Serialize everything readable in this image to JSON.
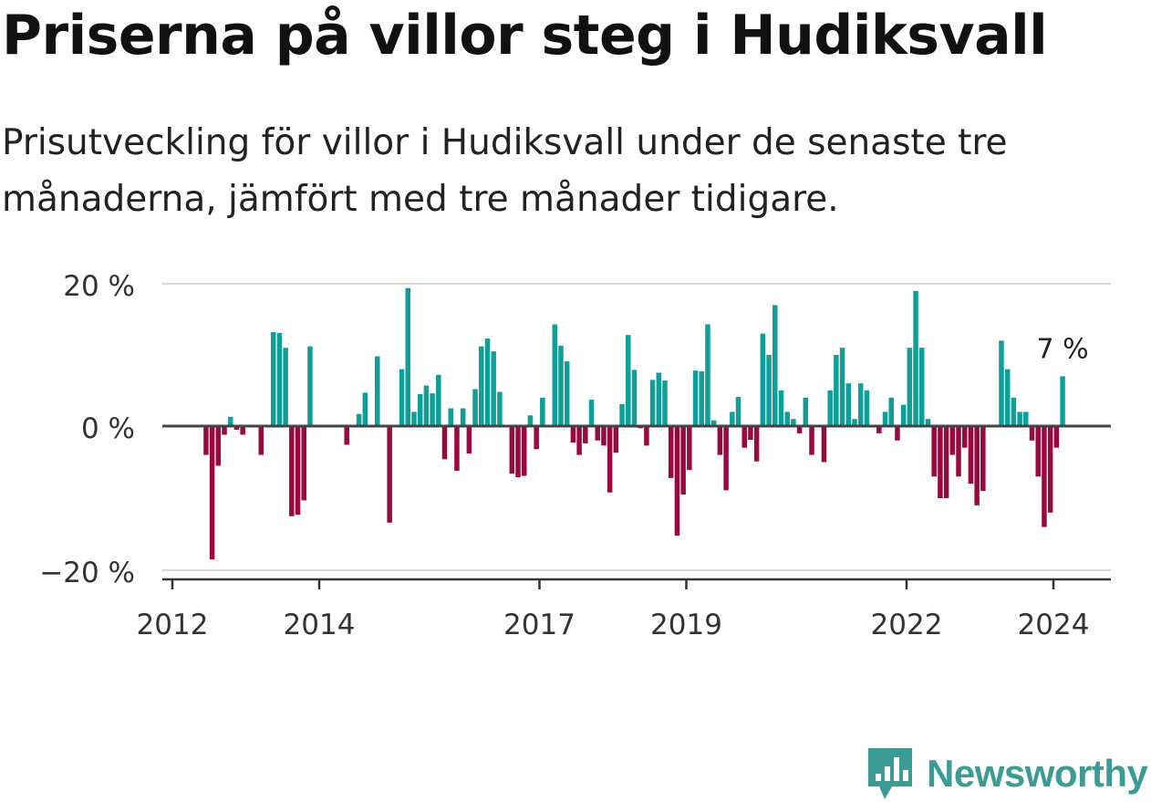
{
  "title": "Priserna på villor steg i Hudiksvall",
  "subtitle": "Prisutveckling för villor i Hudiksvall under de senaste tre månaderna, jämfört med tre månader tidigare.",
  "brand": {
    "name": "Newsworthy",
    "icon": "newsworthy-logo-icon",
    "color": "#3d9b95"
  },
  "colors": {
    "positive": "#0f9e98",
    "negative": "#980a3f",
    "zero_line": "#444444",
    "grid": "#d9d9d9",
    "axis": "#333333"
  },
  "chart_data": {
    "type": "bar",
    "title": "Priserna på villor steg i Hudiksvall",
    "xlabel": "",
    "ylabel": "",
    "unit": "%",
    "ylim": [
      -20,
      20
    ],
    "yticks": [
      {
        "value": 20,
        "label": "20 %"
      },
      {
        "value": 0,
        "label": "0 %"
      },
      {
        "value": -20,
        "label": "−20 %"
      }
    ],
    "xticks": [
      {
        "year": 2012,
        "label": "2012"
      },
      {
        "year": 2014,
        "label": "2014"
      },
      {
        "year": 2017,
        "label": "2017"
      },
      {
        "year": 2019,
        "label": "2019"
      },
      {
        "year": 2022,
        "label": "2022"
      },
      {
        "year": 2024,
        "label": "2024"
      }
    ],
    "x_start": "2012-01",
    "x_end": "2024-09",
    "grid": true,
    "last_value_label": "7 %",
    "values": [
      null,
      null,
      null,
      null,
      null,
      -4,
      -18.5,
      -5.5,
      -1.2,
      1.3,
      -0.5,
      -1.2,
      null,
      null,
      -4,
      null,
      13.2,
      13.1,
      11,
      -12.5,
      -12.3,
      -10.3,
      11.2,
      null,
      null,
      null,
      null,
      null,
      -2.6,
      null,
      1.7,
      4.7,
      null,
      9.8,
      null,
      -13.4,
      null,
      8,
      19.4,
      2,
      4.5,
      5.7,
      4.6,
      7.2,
      -4.6,
      2.5,
      -6.2,
      2.5,
      -3.8,
      5.2,
      11.2,
      12.3,
      10.5,
      4.8,
      null,
      -6.6,
      -7.1,
      -6.9,
      1.5,
      -3.2,
      4,
      null,
      14.3,
      11.3,
      9.1,
      -2.3,
      -4,
      -2.4,
      3.7,
      -2,
      -2.7,
      -9.2,
      -3.7,
      3.1,
      12.8,
      7.9,
      -0.3,
      -2.7,
      6.5,
      7.5,
      6.4,
      -7.2,
      -15.2,
      -9.5,
      -6.1,
      7.8,
      7.7,
      14.3,
      0.8,
      -4,
      -8.9,
      2,
      4.1,
      -3,
      -1.9,
      -4.9,
      13,
      10,
      17,
      5,
      2,
      1,
      -1,
      4,
      -4,
      null,
      -5,
      5,
      10,
      11,
      6,
      1,
      6,
      5,
      null,
      -1,
      2,
      4,
      -2,
      3,
      11,
      19,
      11,
      1,
      -7,
      -10,
      -10,
      -4,
      -7,
      -3,
      -8,
      -11,
      -9,
      null,
      null,
      12,
      8,
      4,
      2,
      2,
      -2,
      -7,
      -14,
      -12,
      -3,
      7
    ]
  }
}
